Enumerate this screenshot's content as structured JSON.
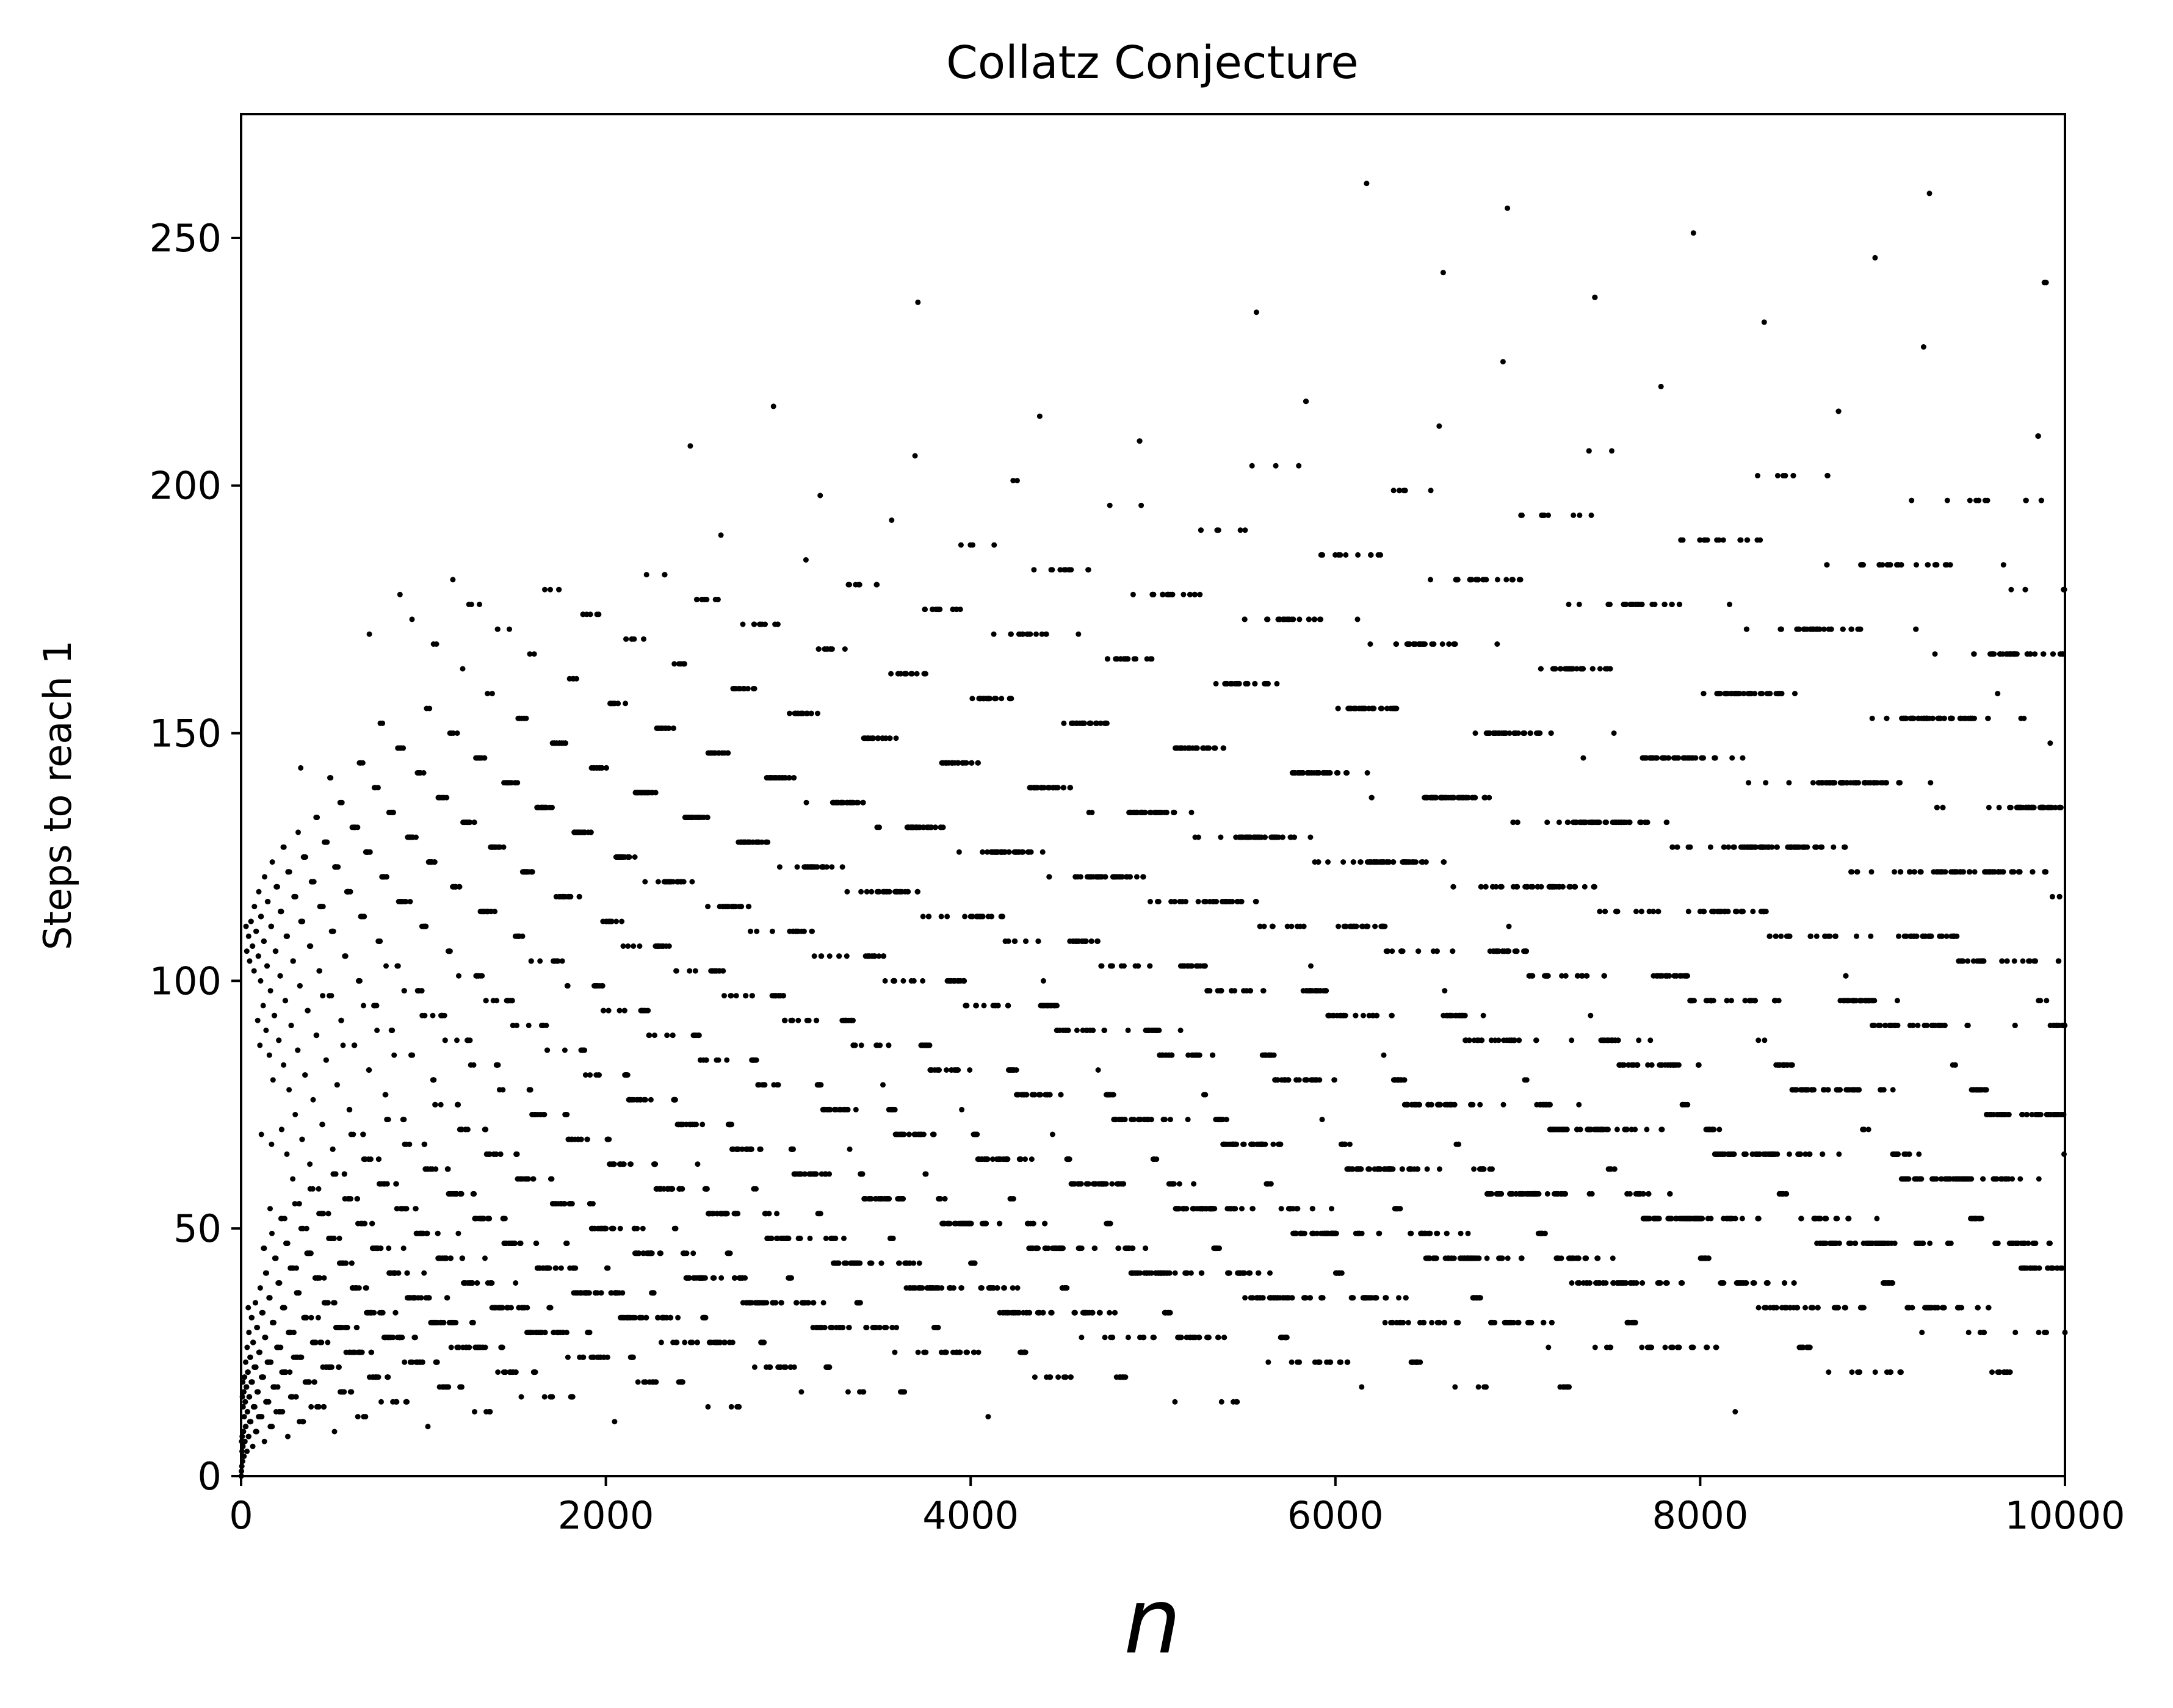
{
  "chart_data": {
    "type": "scatter",
    "title": "Collatz Conjecture",
    "xlabel": "n",
    "ylabel": "Steps to reach 1",
    "xlim": [
      0,
      10000
    ],
    "ylim": [
      0,
      275
    ],
    "x_ticks": [
      "0",
      "2000",
      "4000",
      "6000",
      "8000",
      "10000"
    ],
    "x_tick_values": [
      0,
      2000,
      4000,
      6000,
      8000,
      10000
    ],
    "y_ticks": [
      "0",
      "50",
      "100",
      "150",
      "200",
      "250"
    ],
    "y_tick_values": [
      0,
      50,
      100,
      150,
      200,
      250
    ],
    "grid": false,
    "legend": "none",
    "series": [
      {
        "values_description_source": "computed",
        "x_start": 1,
        "x_end": 10000,
        "x_step": 1,
        "rule": "collatz_total_stopping_time"
      }
    ],
    "marker_color": "#000000"
  }
}
